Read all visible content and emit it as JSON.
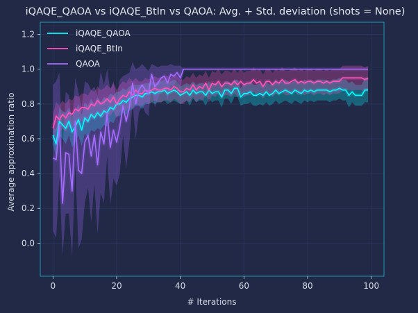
{
  "chart_data": {
    "type": "line",
    "title": "iQAQE_QAOA vs iQAQE_BtIn vs QAOA: Avg. + Std. deviation (shots = None)",
    "xlabel": "# Iterations",
    "ylabel": "Average approximation ratio",
    "xlim": [
      -4,
      104
    ],
    "ylim": [
      -0.19,
      1.27
    ],
    "xticks": [
      0,
      20,
      40,
      60,
      80,
      100
    ],
    "yticks": [
      0.0,
      0.2,
      0.4,
      0.6,
      0.8,
      1.0,
      1.2
    ],
    "grid": true,
    "legend_position": "top-left",
    "background": "#212946",
    "grid_color": "#2A3459",
    "series": [
      {
        "name": "iQAQE_QAOA",
        "color": "#08F7FE",
        "x": [
          0,
          1,
          2,
          3,
          4,
          5,
          6,
          7,
          8,
          9,
          10,
          11,
          12,
          13,
          14,
          15,
          16,
          17,
          18,
          19,
          20,
          21,
          22,
          23,
          24,
          25,
          26,
          27,
          28,
          29,
          30,
          31,
          32,
          33,
          34,
          35,
          36,
          37,
          38,
          39,
          40,
          41,
          42,
          43,
          44,
          45,
          46,
          47,
          48,
          49,
          50,
          51,
          52,
          53,
          54,
          55,
          56,
          57,
          58,
          59,
          60,
          61,
          62,
          63,
          64,
          65,
          66,
          67,
          68,
          69,
          70,
          71,
          72,
          73,
          74,
          75,
          76,
          77,
          78,
          79,
          80,
          81,
          82,
          83,
          84,
          85,
          86,
          87,
          88,
          89,
          90,
          91,
          92,
          93,
          94,
          95,
          96,
          97,
          98,
          99
        ],
        "values": [
          0.62,
          0.57,
          0.7,
          0.68,
          0.66,
          0.7,
          0.64,
          0.67,
          0.71,
          0.65,
          0.72,
          0.7,
          0.74,
          0.72,
          0.75,
          0.73,
          0.76,
          0.75,
          0.78,
          0.77,
          0.8,
          0.8,
          0.82,
          0.81,
          0.83,
          0.84,
          0.85,
          0.85,
          0.84,
          0.86,
          0.86,
          0.87,
          0.86,
          0.87,
          0.87,
          0.88,
          0.86,
          0.87,
          0.88,
          0.87,
          0.85,
          0.86,
          0.87,
          0.85,
          0.88,
          0.86,
          0.87,
          0.87,
          0.85,
          0.88,
          0.86,
          0.87,
          0.87,
          0.84,
          0.88,
          0.88,
          0.86,
          0.89,
          0.89,
          0.84,
          0.86,
          0.86,
          0.87,
          0.85,
          0.85,
          0.86,
          0.85,
          0.87,
          0.85,
          0.86,
          0.88,
          0.86,
          0.87,
          0.88,
          0.87,
          0.86,
          0.88,
          0.87,
          0.86,
          0.88,
          0.87,
          0.88,
          0.87,
          0.88,
          0.88,
          0.88,
          0.88,
          0.87,
          0.88,
          0.88,
          0.89,
          0.88,
          0.88,
          0.85,
          0.87,
          0.85,
          0.85,
          0.85,
          0.88,
          0.88
        ],
        "std": [
          0.05,
          0.08,
          0.08,
          0.08,
          0.09,
          0.08,
          0.09,
          0.09,
          0.09,
          0.09,
          0.09,
          0.09,
          0.09,
          0.08,
          0.09,
          0.08,
          0.08,
          0.08,
          0.08,
          0.08,
          0.07,
          0.07,
          0.07,
          0.07,
          0.07,
          0.07,
          0.06,
          0.06,
          0.07,
          0.06,
          0.06,
          0.06,
          0.06,
          0.06,
          0.06,
          0.06,
          0.06,
          0.06,
          0.06,
          0.06,
          0.05,
          0.05,
          0.05,
          0.06,
          0.05,
          0.05,
          0.05,
          0.05,
          0.06,
          0.05,
          0.05,
          0.05,
          0.05,
          0.06,
          0.05,
          0.05,
          0.06,
          0.05,
          0.05,
          0.05,
          0.06,
          0.06,
          0.06,
          0.06,
          0.06,
          0.06,
          0.06,
          0.06,
          0.06,
          0.06,
          0.06,
          0.06,
          0.06,
          0.06,
          0.06,
          0.06,
          0.06,
          0.06,
          0.06,
          0.06,
          0.06,
          0.06,
          0.06,
          0.06,
          0.06,
          0.06,
          0.06,
          0.06,
          0.06,
          0.06,
          0.06,
          0.06,
          0.06,
          0.07,
          0.06,
          0.06,
          0.06,
          0.06,
          0.07,
          0.07
        ]
      },
      {
        "name": "iQAQE_BtIn",
        "color": "#FE53BB",
        "x": [
          0,
          1,
          2,
          3,
          4,
          5,
          6,
          7,
          8,
          9,
          10,
          11,
          12,
          13,
          14,
          15,
          16,
          17,
          18,
          19,
          20,
          21,
          22,
          23,
          24,
          25,
          26,
          27,
          28,
          29,
          30,
          31,
          32,
          33,
          34,
          35,
          36,
          37,
          38,
          39,
          40,
          41,
          42,
          43,
          44,
          45,
          46,
          47,
          48,
          49,
          50,
          51,
          52,
          53,
          54,
          55,
          56,
          57,
          58,
          59,
          60,
          61,
          62,
          63,
          64,
          65,
          66,
          67,
          68,
          69,
          70,
          71,
          72,
          73,
          74,
          75,
          76,
          77,
          78,
          79,
          80,
          81,
          82,
          83,
          84,
          85,
          86,
          87,
          88,
          89,
          90,
          91,
          92,
          93,
          94,
          95,
          96,
          97,
          98,
          99
        ],
        "values": [
          0.66,
          0.73,
          0.71,
          0.74,
          0.72,
          0.75,
          0.74,
          0.77,
          0.76,
          0.78,
          0.78,
          0.77,
          0.8,
          0.79,
          0.82,
          0.8,
          0.81,
          0.83,
          0.81,
          0.84,
          0.8,
          0.83,
          0.85,
          0.84,
          0.87,
          0.85,
          0.88,
          0.86,
          0.86,
          0.88,
          0.87,
          0.88,
          0.89,
          0.88,
          0.88,
          0.89,
          0.89,
          0.88,
          0.9,
          0.89,
          0.87,
          0.87,
          0.89,
          0.88,
          0.91,
          0.88,
          0.9,
          0.89,
          0.92,
          0.88,
          0.92,
          0.91,
          0.93,
          0.9,
          0.92,
          0.92,
          0.91,
          0.93,
          0.91,
          0.93,
          0.91,
          0.92,
          0.92,
          0.94,
          0.92,
          0.93,
          0.9,
          0.93,
          0.93,
          0.91,
          0.93,
          0.92,
          0.94,
          0.92,
          0.92,
          0.93,
          0.94,
          0.92,
          0.93,
          0.92,
          0.93,
          0.93,
          0.92,
          0.93,
          0.93,
          0.92,
          0.93,
          0.92,
          0.93,
          0.93,
          0.93,
          0.95,
          0.95,
          0.95,
          0.95,
          0.95,
          0.95,
          0.95,
          0.94,
          0.95
        ],
        "std": [
          0.08,
          0.08,
          0.08,
          0.08,
          0.08,
          0.08,
          0.08,
          0.08,
          0.08,
          0.08,
          0.08,
          0.08,
          0.08,
          0.08,
          0.08,
          0.08,
          0.08,
          0.08,
          0.08,
          0.08,
          0.08,
          0.08,
          0.08,
          0.08,
          0.08,
          0.08,
          0.07,
          0.07,
          0.07,
          0.07,
          0.07,
          0.07,
          0.07,
          0.07,
          0.07,
          0.07,
          0.07,
          0.07,
          0.07,
          0.07,
          0.07,
          0.07,
          0.07,
          0.07,
          0.07,
          0.07,
          0.07,
          0.07,
          0.07,
          0.07,
          0.07,
          0.07,
          0.07,
          0.07,
          0.07,
          0.07,
          0.07,
          0.07,
          0.07,
          0.07,
          0.07,
          0.07,
          0.07,
          0.07,
          0.07,
          0.07,
          0.07,
          0.07,
          0.07,
          0.07,
          0.07,
          0.07,
          0.07,
          0.07,
          0.07,
          0.07,
          0.07,
          0.07,
          0.07,
          0.07,
          0.07,
          0.07,
          0.07,
          0.07,
          0.07,
          0.07,
          0.07,
          0.07,
          0.07,
          0.07,
          0.07,
          0.07,
          0.07,
          0.07,
          0.07,
          0.07,
          0.07,
          0.07,
          0.07,
          0.07
        ]
      },
      {
        "name": "QAOA",
        "color": "#A66BFF",
        "x": [
          0,
          1,
          2,
          3,
          4,
          5,
          6,
          7,
          8,
          9,
          10,
          11,
          12,
          13,
          14,
          15,
          16,
          17,
          18,
          19,
          20,
          21,
          22,
          23,
          24,
          25,
          26,
          27,
          28,
          29,
          30,
          31,
          32,
          33,
          34,
          35,
          36,
          37,
          38,
          39,
          40,
          41,
          42,
          43,
          44,
          45,
          46,
          47,
          48,
          49,
          50,
          51,
          52,
          53,
          54,
          55,
          56,
          57,
          58,
          59,
          60,
          61,
          62,
          63,
          64,
          65,
          66,
          67,
          68,
          69,
          70,
          71,
          72,
          73,
          74,
          75,
          76,
          77,
          78,
          79,
          80,
          81,
          82,
          83,
          84,
          85,
          86,
          87,
          88,
          89,
          90,
          91,
          92,
          93,
          94,
          95,
          96,
          97,
          98,
          99
        ],
        "values": [
          0.49,
          0.48,
          0.68,
          0.23,
          0.52,
          0.51,
          0.3,
          0.7,
          0.42,
          0.4,
          0.58,
          0.62,
          0.5,
          0.62,
          0.45,
          0.64,
          0.57,
          0.75,
          0.55,
          0.65,
          0.58,
          0.67,
          0.79,
          0.7,
          0.78,
          0.92,
          0.8,
          0.88,
          0.91,
          0.88,
          0.86,
          0.97,
          0.9,
          0.92,
          0.95,
          0.96,
          0.92,
          0.97,
          0.96,
          0.98,
          0.95,
          1.0,
          1.0,
          1.0,
          1.0,
          1.0,
          1.0,
          1.0,
          1.0,
          1.0,
          1.0,
          1.0,
          1.0,
          1.0,
          1.0,
          1.0,
          1.0,
          1.0,
          1.0,
          1.0,
          1.0,
          1.0,
          1.0,
          1.0,
          1.0,
          1.0,
          1.0,
          1.0,
          1.0,
          1.0,
          1.0,
          1.0,
          1.0,
          1.0,
          1.0,
          1.0,
          1.0,
          1.0,
          1.0,
          1.0,
          1.0,
          1.0,
          1.0,
          1.0,
          1.0,
          1.0,
          1.0,
          1.0,
          1.0,
          1.0,
          1.0,
          1.0,
          1.0,
          1.0,
          1.0,
          1.0,
          1.0,
          1.0,
          1.0,
          1.0
        ],
        "std": [
          0.42,
          0.45,
          0.3,
          0.3,
          0.35,
          0.34,
          0.38,
          0.25,
          0.45,
          0.38,
          0.35,
          0.3,
          0.38,
          0.28,
          0.4,
          0.35,
          0.34,
          0.25,
          0.33,
          0.28,
          0.25,
          0.27,
          0.17,
          0.27,
          0.2,
          0.12,
          0.2,
          0.13,
          0.12,
          0.13,
          0.13,
          0.06,
          0.12,
          0.09,
          0.07,
          0.06,
          0.1,
          0.06,
          0.06,
          0.04,
          0.07,
          0.0,
          0.0,
          0.0,
          0.0,
          0.0,
          0.0,
          0.0,
          0.0,
          0.0,
          0.0,
          0.0,
          0.0,
          0.0,
          0.0,
          0.0,
          0.0,
          0.0,
          0.0,
          0.0,
          0.0,
          0.0,
          0.0,
          0.0,
          0.0,
          0.0,
          0.0,
          0.0,
          0.0,
          0.0,
          0.0,
          0.0,
          0.0,
          0.0,
          0.0,
          0.0,
          0.0,
          0.0,
          0.0,
          0.0,
          0.0,
          0.0,
          0.0,
          0.0,
          0.0,
          0.0,
          0.0,
          0.0,
          0.0,
          0.0,
          0.0,
          0.0,
          0.0,
          0.0,
          0.0,
          0.0,
          0.0,
          0.0,
          0.0,
          0.0
        ]
      }
    ]
  }
}
